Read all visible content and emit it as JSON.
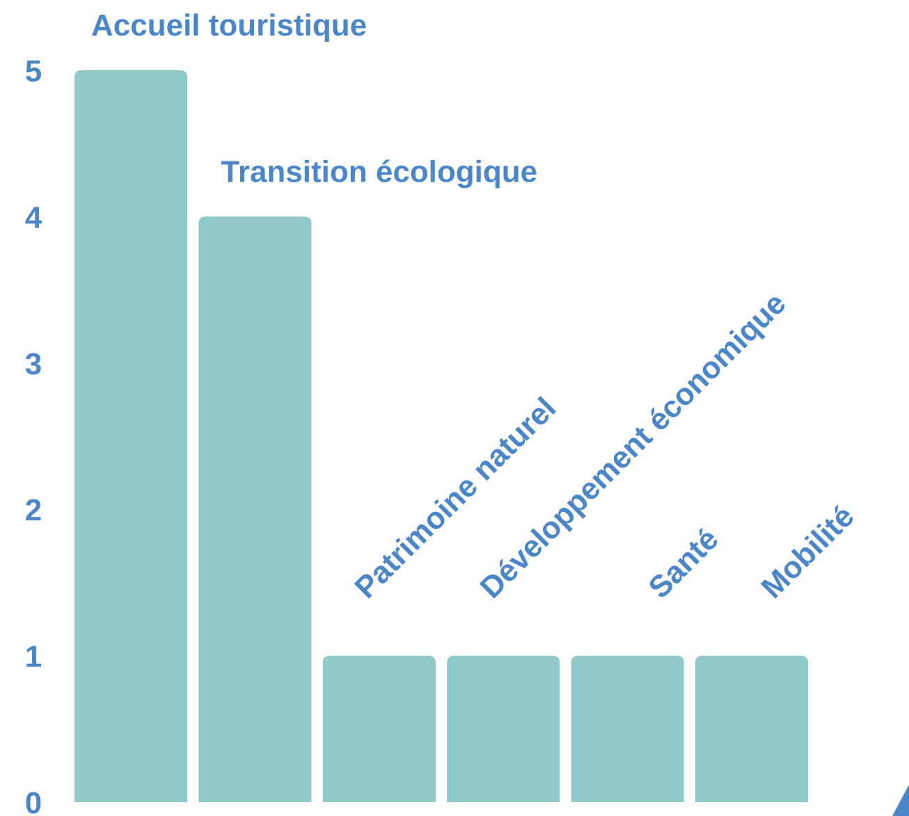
{
  "chart_data": {
    "type": "bar",
    "categories": [
      "Accueil touristique",
      "Transition écologique",
      "Patrimoine naturel",
      "Développement économique",
      "Santé",
      "Mobilité"
    ],
    "values": [
      5,
      4,
      1,
      1,
      1,
      1
    ],
    "color": "#8fc9c9",
    "ylim": [
      0,
      5
    ],
    "yticks": [
      0,
      1,
      2,
      3,
      4,
      5
    ],
    "grid": false
  }
}
